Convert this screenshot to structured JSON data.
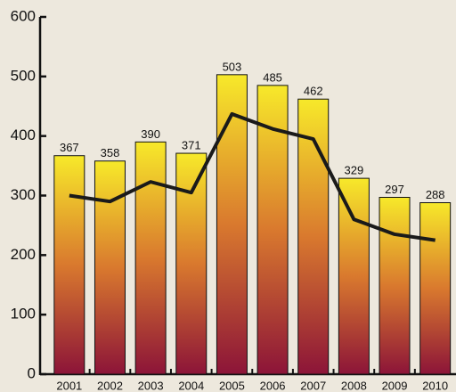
{
  "chart_data": {
    "type": "bar",
    "categories": [
      "2001",
      "2002",
      "2003",
      "2004",
      "2005",
      "2006",
      "2007",
      "2008",
      "2009",
      "2010"
    ],
    "values": [
      367,
      358,
      390,
      371,
      503,
      485,
      462,
      329,
      297,
      288
    ],
    "line_values": [
      300,
      290,
      323,
      305,
      437,
      412,
      395,
      260,
      235,
      225
    ],
    "line_color": "#1a1a1a",
    "color_top": "#f7e92a",
    "color_bottom": "#8c1438",
    "ylim": [
      0,
      600
    ],
    "yticks": [
      0,
      100,
      200,
      300,
      400,
      500,
      600
    ],
    "grid": false
  }
}
